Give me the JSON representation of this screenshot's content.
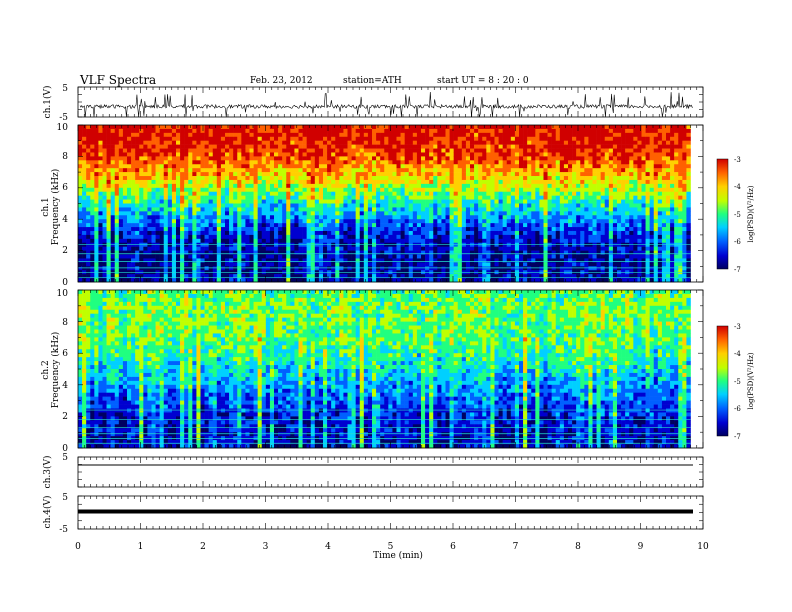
{
  "header": {
    "title": "VLF  Spectra",
    "date": "Feb. 23, 2012",
    "station": "station=ATH",
    "start": "start  UT  =   8  : 20 : 0"
  },
  "colors": {
    "colormap": [
      "#000060",
      "#0000d0",
      "#0060ff",
      "#00d0ff",
      "#20ff80",
      "#c0ff00",
      "#ffd000",
      "#ff6000",
      "#d00000"
    ],
    "trace": "#000000"
  },
  "chart_data": [
    {
      "type": "line",
      "panel": "ch1-waveform",
      "ylabel": "ch.1(V)",
      "ylim": [
        -5,
        5
      ],
      "yticks": [
        "5",
        "-5"
      ],
      "xlim": [
        0,
        10
      ],
      "series_description_values": {
        "baseline": -1.5,
        "spike_min": -5,
        "spike_max": 4
      }
    },
    {
      "type": "heatmap",
      "panel": "ch1-spectrogram",
      "ylabel": "ch.1\nFrequency  (kHz)",
      "ylabel_line1": "ch.1",
      "ylabel_line2": "Frequency  (kHz)",
      "ylim": [
        0,
        10
      ],
      "yticks": [
        "0",
        "2",
        "4",
        "6",
        "8",
        "10"
      ],
      "xlim": [
        0,
        9.8
      ],
      "colorbar": {
        "label": "log(PSD)(V²/Hz)",
        "range": [
          -7,
          -3
        ],
        "ticks": [
          "-3",
          "-4",
          "-5",
          "-6",
          "-7"
        ]
      },
      "profile_freq_khz": [
        0,
        1,
        2,
        3,
        4,
        5,
        6,
        7,
        8,
        9,
        10
      ],
      "profile_log_psd": [
        -6.6,
        -6.6,
        -6.5,
        -6.3,
        -5.8,
        -5.2,
        -4.6,
        -4.0,
        -3.5,
        -3.3,
        -3.2
      ]
    },
    {
      "type": "heatmap",
      "panel": "ch2-spectrogram",
      "ylabel": "ch.2\nFrequency  (kHz)",
      "ylabel_line1": "ch.2",
      "ylabel_line2": "Frequency  (kHz)",
      "ylim": [
        0,
        10
      ],
      "yticks": [
        "0",
        "2",
        "4",
        "6",
        "8",
        "10"
      ],
      "xlim": [
        0,
        9.8
      ],
      "colorbar": {
        "label": "log(PSD)(V²/Hz)",
        "range": [
          -7,
          -3
        ],
        "ticks": [
          "-3",
          "-4",
          "-5",
          "-6",
          "-7"
        ]
      },
      "profile_freq_khz": [
        0,
        1,
        2,
        3,
        4,
        5,
        6,
        7,
        8,
        9,
        10
      ],
      "profile_log_psd": [
        -6.5,
        -6.4,
        -6.3,
        -6.0,
        -5.7,
        -5.4,
        -5.1,
        -4.9,
        -4.8,
        -4.8,
        -4.9
      ]
    },
    {
      "type": "line",
      "panel": "ch3-waveform",
      "ylabel": "ch.3(V)",
      "ylim": [
        -5,
        5
      ],
      "yticks": [
        "5"
      ],
      "xlim": [
        0,
        10
      ],
      "series_description_values": {
        "baseline": 0
      }
    },
    {
      "type": "line",
      "panel": "ch4-waveform",
      "ylabel": "ch.4(V)",
      "ylim": [
        -5,
        5
      ],
      "yticks": [
        "5",
        "-5"
      ],
      "xlim": [
        0,
        10
      ],
      "series_description_values": {
        "baseline": 0
      }
    }
  ],
  "xaxis": {
    "label": "Time  (min)",
    "ticks": [
      "0",
      "1",
      "2",
      "3",
      "4",
      "5",
      "6",
      "7",
      "8",
      "9",
      "10"
    ]
  }
}
